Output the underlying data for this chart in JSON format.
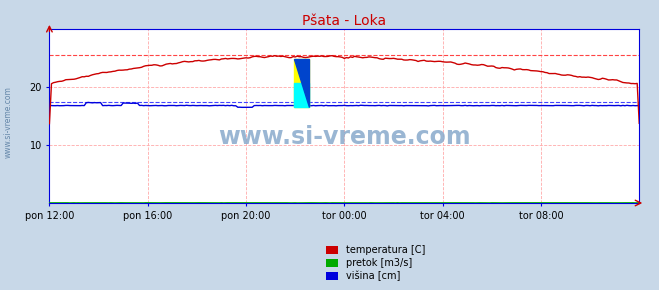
{
  "title": "Pšata - Loka",
  "bg_color": "#c8d8e8",
  "plot_bg_color": "#ffffff",
  "x_labels": [
    "pon 12:00",
    "pon 16:00",
    "pon 20:00",
    "tor 00:00",
    "tor 04:00",
    "tor 08:00"
  ],
  "x_ticks_pos": [
    0,
    48,
    96,
    144,
    192,
    240
  ],
  "x_max": 288,
  "y_min": 0,
  "y_max": 30,
  "y_ticks": [
    10,
    20
  ],
  "temp_color": "#cc0000",
  "flow_color": "#00aa00",
  "height_color": "#0000dd",
  "grid_color_v": "#ffaaaa",
  "grid_color_h": "#ffaaaa",
  "temp_dash_color": "#ff4444",
  "height_dash_color": "#4444ff",
  "temp_max_y": 25.5,
  "height_flat_y": 16.8,
  "height_max_y": 17.4,
  "watermark_text": "www.si-vreme.com",
  "watermark_color": "#88aacc",
  "sidebar_text": "www.si-vreme.com",
  "sidebar_color": "#6688aa",
  "legend_labels": [
    "temperatura [C]",
    "pretok [m3/s]",
    "višina [cm]"
  ],
  "legend_colors": [
    "#cc0000",
    "#00aa00",
    "#0000dd"
  ],
  "axis_color": "#0000dd",
  "tick_fontsize": 7,
  "title_fontsize": 10
}
